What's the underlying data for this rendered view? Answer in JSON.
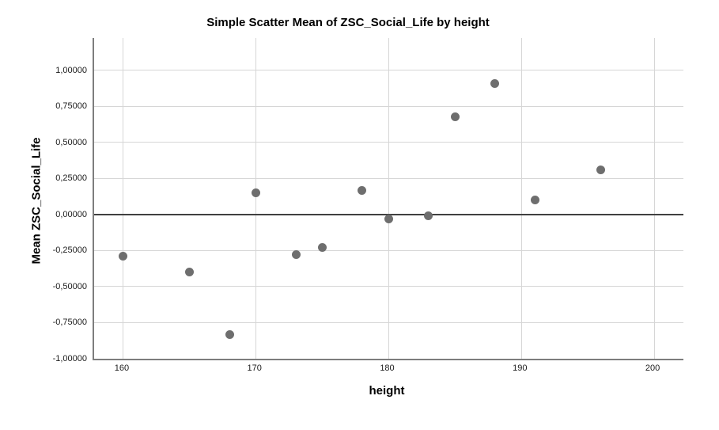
{
  "title": "Simple Scatter Mean of ZSC_Social_Life by height",
  "chart_data": {
    "type": "scatter",
    "title": "Simple Scatter Mean of ZSC_Social_Life by height",
    "xlabel": "height",
    "ylabel": "Mean ZSC_Social_Life",
    "xlim": [
      157.8,
      202.2
    ],
    "ylim": [
      -1.0,
      1.225
    ],
    "grid": true,
    "legend": false,
    "reference_line_y": 0,
    "x_ticks": [
      {
        "value": 160,
        "label": "160"
      },
      {
        "value": 170,
        "label": "170"
      },
      {
        "value": 180,
        "label": "180"
      },
      {
        "value": 190,
        "label": "190"
      },
      {
        "value": 200,
        "label": "200"
      }
    ],
    "y_ticks": [
      {
        "value": 1.0,
        "label": "1,00000"
      },
      {
        "value": 0.75,
        "label": "0,75000"
      },
      {
        "value": 0.5,
        "label": "0,50000"
      },
      {
        "value": 0.25,
        "label": "0,25000"
      },
      {
        "value": 0.0,
        "label": "0,00000"
      },
      {
        "value": -0.25,
        "label": "-0,25000"
      },
      {
        "value": -0.5,
        "label": "-0,50000"
      },
      {
        "value": -0.75,
        "label": "-0,75000"
      },
      {
        "value": -1.0,
        "label": "-1,00000"
      }
    ],
    "points": [
      {
        "x": 160,
        "y": -0.29
      },
      {
        "x": 165,
        "y": -0.4
      },
      {
        "x": 168,
        "y": -0.83
      },
      {
        "x": 170,
        "y": 0.15
      },
      {
        "x": 173,
        "y": -0.28
      },
      {
        "x": 175,
        "y": -0.23
      },
      {
        "x": 178,
        "y": 0.17
      },
      {
        "x": 180,
        "y": -0.03
      },
      {
        "x": 183,
        "y": -0.01
      },
      {
        "x": 185,
        "y": 0.68
      },
      {
        "x": 188,
        "y": 0.91
      },
      {
        "x": 191,
        "y": 0.1
      },
      {
        "x": 196,
        "y": 0.31
      }
    ],
    "colors": {
      "point": "#6e6e6e",
      "grid": "#d6d6d6",
      "axis": "#7d7d7d",
      "zero_line": "#404040",
      "background": "#ffffff",
      "text": "#1a1a1a"
    }
  }
}
